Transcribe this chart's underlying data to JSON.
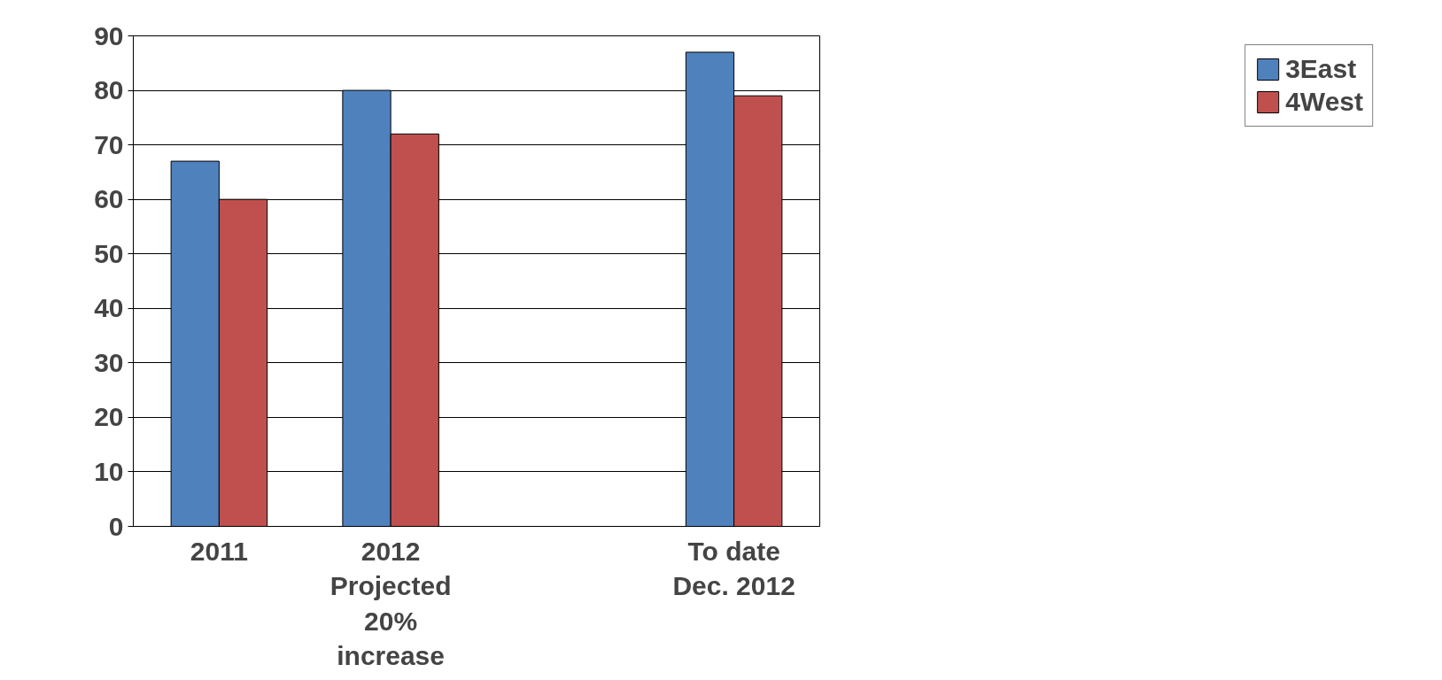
{
  "chart_data": {
    "type": "bar",
    "categories": [
      "2011",
      "2012\nProjected\n20%\nincrease",
      null,
      "To date\nDec. 2012"
    ],
    "series": [
      {
        "name": "3East",
        "color": "#4f81bd",
        "values": [
          67,
          80,
          null,
          87
        ]
      },
      {
        "name": "4West",
        "color": "#c0504d",
        "values": [
          60,
          72,
          null,
          79
        ]
      }
    ],
    "ylim": [
      0,
      90
    ],
    "yticks": [
      0,
      10,
      20,
      30,
      40,
      50,
      60,
      70,
      80,
      90
    ],
    "grid": "y",
    "legend": "right"
  }
}
